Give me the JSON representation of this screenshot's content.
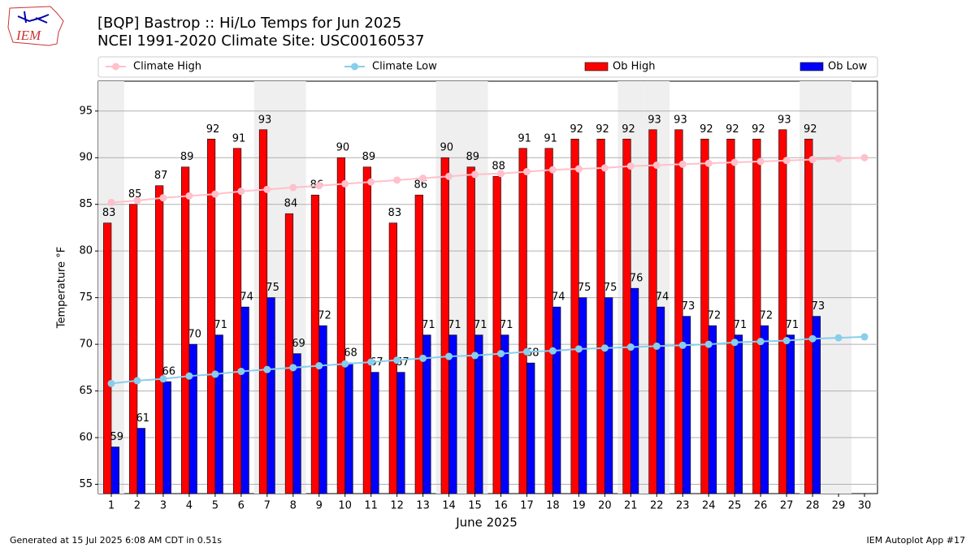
{
  "chart_data": {
    "type": "bar_line",
    "title": "[BQP] Bastrop :: Hi/Lo Temps for Jun 2025",
    "subtitle": "NCEI 1991-2020 Climate Site: USC00160537",
    "logo_text": "IEM",
    "x_label": "June 2025",
    "y_label": "Temperature °F",
    "footer_left": "Generated at 15 Jul 2025 6:08 AM CDT in 0.51s",
    "footer_right": "IEM Autoplot App #17",
    "legend": "top",
    "grid": true,
    "categories": [
      "1",
      "2",
      "3",
      "4",
      "5",
      "6",
      "7",
      "8",
      "9",
      "10",
      "11",
      "12",
      "13",
      "14",
      "15",
      "16",
      "17",
      "18",
      "19",
      "20",
      "21",
      "22",
      "23",
      "24",
      "25",
      "26",
      "27",
      "28",
      "29",
      "30"
    ],
    "shaded_days": [
      "1",
      "7",
      "8",
      "14",
      "15",
      "21",
      "22",
      "28",
      "29"
    ],
    "ylim": [
      54,
      98.2
    ],
    "yticks": [
      55,
      60,
      65,
      70,
      75,
      80,
      85,
      90,
      95
    ],
    "series": [
      {
        "name": "Climate High",
        "kind": "line",
        "color": "#ffc0cb",
        "values": [
          85.2,
          85.4,
          85.7,
          85.9,
          86.1,
          86.4,
          86.6,
          86.8,
          87.0,
          87.2,
          87.4,
          87.6,
          87.8,
          88.0,
          88.2,
          88.3,
          88.5,
          88.7,
          88.8,
          88.9,
          89.1,
          89.2,
          89.3,
          89.4,
          89.5,
          89.6,
          89.7,
          89.8,
          89.9,
          90.0
        ]
      },
      {
        "name": "Climate Low",
        "kind": "line",
        "color": "#87ceeb",
        "values": [
          65.8,
          66.1,
          66.3,
          66.6,
          66.8,
          67.1,
          67.3,
          67.5,
          67.7,
          67.9,
          68.1,
          68.3,
          68.5,
          68.7,
          68.8,
          69.0,
          69.2,
          69.3,
          69.5,
          69.6,
          69.7,
          69.8,
          69.9,
          70.0,
          70.2,
          70.3,
          70.4,
          70.6,
          70.7,
          70.8
        ]
      },
      {
        "name": "Ob High",
        "kind": "bar",
        "color": "#ff0000",
        "values": [
          83,
          85,
          87,
          89,
          92,
          91,
          93,
          84,
          86,
          90,
          89,
          83,
          86,
          90,
          89,
          88,
          91,
          91,
          92,
          92,
          92,
          93,
          93,
          92,
          92,
          92,
          93,
          92,
          null,
          null
        ]
      },
      {
        "name": "Ob Low",
        "kind": "bar",
        "color": "#0000ff",
        "values": [
          59,
          61,
          66,
          70,
          71,
          74,
          75,
          69,
          72,
          68,
          67,
          67,
          71,
          71,
          71,
          71,
          68,
          74,
          75,
          75,
          76,
          74,
          73,
          72,
          71,
          72,
          71,
          73,
          null,
          null
        ]
      }
    ]
  }
}
